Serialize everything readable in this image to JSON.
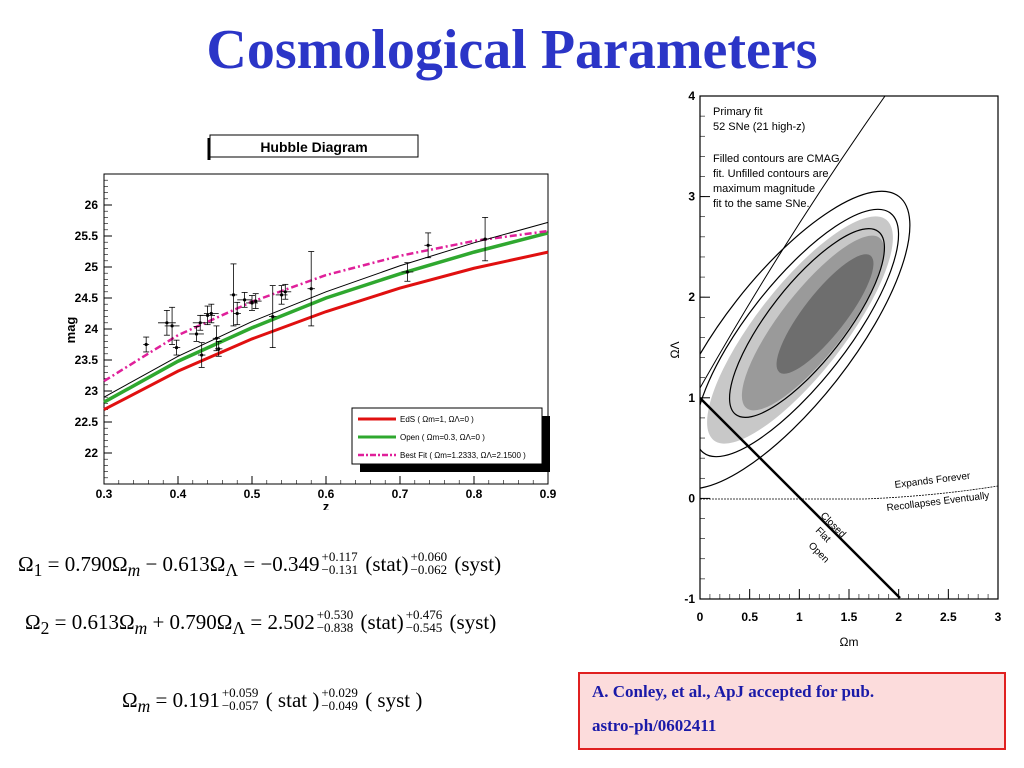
{
  "slide": {
    "title": "Cosmological Parameters"
  },
  "colors": {
    "title": "#2b35c7",
    "eds": "#e01010",
    "open": "#2fa82f",
    "bestfit": "#e0209a",
    "citation_bg": "#fcdcdc",
    "citation_border": "#e02020",
    "citation_text": "#1a1aa8"
  },
  "chart_data": [
    {
      "type": "line",
      "title": "Hubble Diagram",
      "xlabel": "z",
      "ylabel": "mag",
      "xlim": [
        0.3,
        0.9
      ],
      "ylim": [
        21.5,
        26.5
      ],
      "xticks": [
        "0.3",
        "0.4",
        "0.5",
        "0.6",
        "0.7",
        "0.8",
        "0.9"
      ],
      "yticks": [
        "22",
        "22.5",
        "23",
        "23.5",
        "24",
        "24.5",
        "25",
        "25.5",
        "26"
      ],
      "legend_position": "bottom-right",
      "series": [
        {
          "name": "EdS ( Ωm=1, ΩΛ=0 )",
          "x": [
            0.3,
            0.4,
            0.5,
            0.6,
            0.7,
            0.8,
            0.9
          ],
          "y": [
            22.7,
            23.32,
            23.84,
            24.28,
            24.66,
            24.98,
            25.24
          ]
        },
        {
          "name": "Open ( Ωm=0.3, ΩΛ=0 )",
          "x": [
            0.3,
            0.4,
            0.5,
            0.6,
            0.7,
            0.8,
            0.9
          ],
          "y": [
            22.82,
            23.48,
            24.02,
            24.5,
            24.89,
            25.24,
            25.55
          ]
        },
        {
          "name": "Best Fit ( Ωm=1.2333, ΩΛ=2.1500 )",
          "x": [
            0.3,
            0.4,
            0.5,
            0.6,
            0.7,
            0.8,
            0.9
          ],
          "y": [
            23.16,
            23.9,
            24.44,
            24.87,
            25.18,
            25.42,
            25.58
          ]
        },
        {
          "name": "",
          "x": [
            0.3,
            0.4,
            0.5,
            0.6,
            0.7,
            0.8,
            0.9
          ],
          "y": [
            22.9,
            23.56,
            24.12,
            24.6,
            25.02,
            25.39,
            25.72
          ]
        }
      ],
      "points": [
        {
          "x": 0.357,
          "y": 23.75,
          "ey": 0.12,
          "ex": 0.004
        },
        {
          "x": 0.385,
          "y": 24.1,
          "ey": 0.2,
          "ex": 0.012
        },
        {
          "x": 0.392,
          "y": 24.05,
          "ey": 0.3,
          "ex": 0.01
        },
        {
          "x": 0.398,
          "y": 23.7,
          "ey": 0.12,
          "ex": 0.005
        },
        {
          "x": 0.425,
          "y": 23.92,
          "ey": 0.12,
          "ex": 0.01
        },
        {
          "x": 0.43,
          "y": 24.1,
          "ey": 0.12,
          "ex": 0.01
        },
        {
          "x": 0.432,
          "y": 23.58,
          "ey": 0.2,
          "ex": 0.005
        },
        {
          "x": 0.44,
          "y": 24.22,
          "ey": 0.15,
          "ex": 0.01
        },
        {
          "x": 0.445,
          "y": 24.25,
          "ey": 0.15,
          "ex": 0.01
        },
        {
          "x": 0.452,
          "y": 23.85,
          "ey": 0.2,
          "ex": 0.005
        },
        {
          "x": 0.455,
          "y": 23.68,
          "ey": 0.12,
          "ex": 0.005
        },
        {
          "x": 0.475,
          "y": 24.55,
          "ey": 0.5,
          "ex": 0.005
        },
        {
          "x": 0.48,
          "y": 24.25,
          "ey": 0.18,
          "ex": 0.005
        },
        {
          "x": 0.49,
          "y": 24.47,
          "ey": 0.12,
          "ex": 0.01
        },
        {
          "x": 0.5,
          "y": 24.42,
          "ey": 0.12,
          "ex": 0.008
        },
        {
          "x": 0.505,
          "y": 24.45,
          "ey": 0.12,
          "ex": 0.008
        },
        {
          "x": 0.528,
          "y": 24.2,
          "ey": 0.5,
          "ex": 0.005
        },
        {
          "x": 0.54,
          "y": 24.55,
          "ey": 0.15,
          "ex": 0.008
        },
        {
          "x": 0.545,
          "y": 24.6,
          "ey": 0.12,
          "ex": 0.008
        },
        {
          "x": 0.58,
          "y": 24.65,
          "ey": 0.6,
          "ex": 0.005
        },
        {
          "x": 0.71,
          "y": 24.92,
          "ey": 0.15,
          "ex": 0.008
        },
        {
          "x": 0.738,
          "y": 25.35,
          "ey": 0.2,
          "ex": 0.005
        },
        {
          "x": 0.815,
          "y": 25.45,
          "ey": 0.35,
          "ex": 0.005
        }
      ]
    },
    {
      "type": "contour",
      "xlabel": "Ωm",
      "ylabel": "ΩΛ",
      "xlim": [
        0,
        3
      ],
      "ylim": [
        -1,
        4
      ],
      "xticks": [
        "0",
        "0.5",
        "1",
        "1.5",
        "2",
        "2.5",
        "3"
      ],
      "yticks": [
        "-1",
        "0",
        "1",
        "2",
        "3",
        "4"
      ],
      "annotations": [
        "Primary fit",
        "52 SNe (21 high-z)",
        "Filled contours are CMAG",
        "fit. Unfilled contours are",
        "maximum magnitude",
        "fit to the same SNe.",
        "Expands Forever",
        "Recollapses Eventually",
        "Closed",
        "Flat",
        "Open"
      ]
    }
  ],
  "equations": {
    "omega1": {
      "lhs": "Ω",
      "lhs_sub": "1",
      "body": " = 0.790Ω",
      "sub_m": "m",
      "body2": " − 0.613Ω",
      "sub_l": "Λ",
      "body3": " = −0.349",
      "stat_sup": "+0.117",
      "stat_sub": "−0.131",
      "stat": " (stat)",
      "syst_sup": "+0.060",
      "syst_sub": "−0.062",
      "syst": " (syst)"
    },
    "omega2": {
      "lhs": "Ω",
      "lhs_sub": "2",
      "body": " = 0.613Ω",
      "sub_m": "m",
      "body2": " + 0.790Ω",
      "sub_l": "Λ",
      "body3": " = 2.502",
      "stat_sup": "+0.530",
      "stat_sub": "−0.838",
      "stat": " (stat)",
      "syst_sup": "+0.476",
      "syst_sub": "−0.545",
      "syst": " (syst)"
    },
    "omegam": {
      "lhs": "Ω",
      "lhs_sub": "m",
      "body3": " = 0.191",
      "stat_sup": "+0.059",
      "stat_sub": "−0.057",
      "stat": " ( stat )",
      "syst_sup": "+0.029",
      "syst_sub": "−0.049",
      "syst": " ( syst )"
    }
  },
  "citation": {
    "line1": "A. Conley, et al., ApJ accepted for pub.",
    "line2": "astro-ph/0602411"
  }
}
